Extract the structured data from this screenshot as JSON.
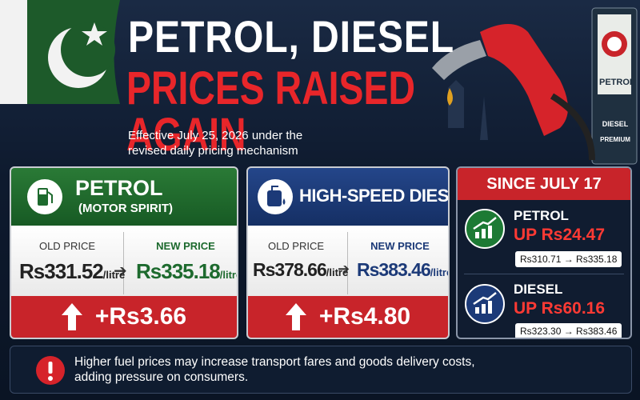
{
  "header": {
    "title_line1": "PETROL, DIESEL",
    "title_line2": "PRICES RAISED AGAIN",
    "subtitle": "Effective July 25, 2026 under the revised daily pricing mechanism"
  },
  "sign": {
    "brand": "PETROL",
    "row1": "DIESEL",
    "row2": "PREMIUM"
  },
  "cards": [
    {
      "name": "PETROL",
      "subname": "(MOTOR SPIRIT)",
      "old_label": "OLD PRICE",
      "old_price": "Rs331.52",
      "old_unit": "/litre",
      "new_label": "NEW PRICE",
      "new_price": "Rs335.18",
      "new_unit": "/litre",
      "change": "+Rs3.66"
    },
    {
      "name": "HIGH-SPEED DIESEL",
      "old_label": "OLD PRICE",
      "old_price": "Rs378.66",
      "old_unit": "/litre",
      "new_label": "NEW PRICE",
      "new_price": "Rs383.46",
      "new_unit": "/litre",
      "change": "+Rs4.80"
    }
  ],
  "since": {
    "title": "SINCE JULY 17",
    "items": [
      {
        "name": "PETROL",
        "change": "UP Rs24.47",
        "range": "Rs310.71 → Rs335.18"
      },
      {
        "name": "DIESEL",
        "change": "UP Rs60.16",
        "range": "Rs323.30 → Rs383.46"
      }
    ]
  },
  "notice": "Higher fuel prices may increase transport fares and goods delivery costs, adding pressure on consumers."
}
